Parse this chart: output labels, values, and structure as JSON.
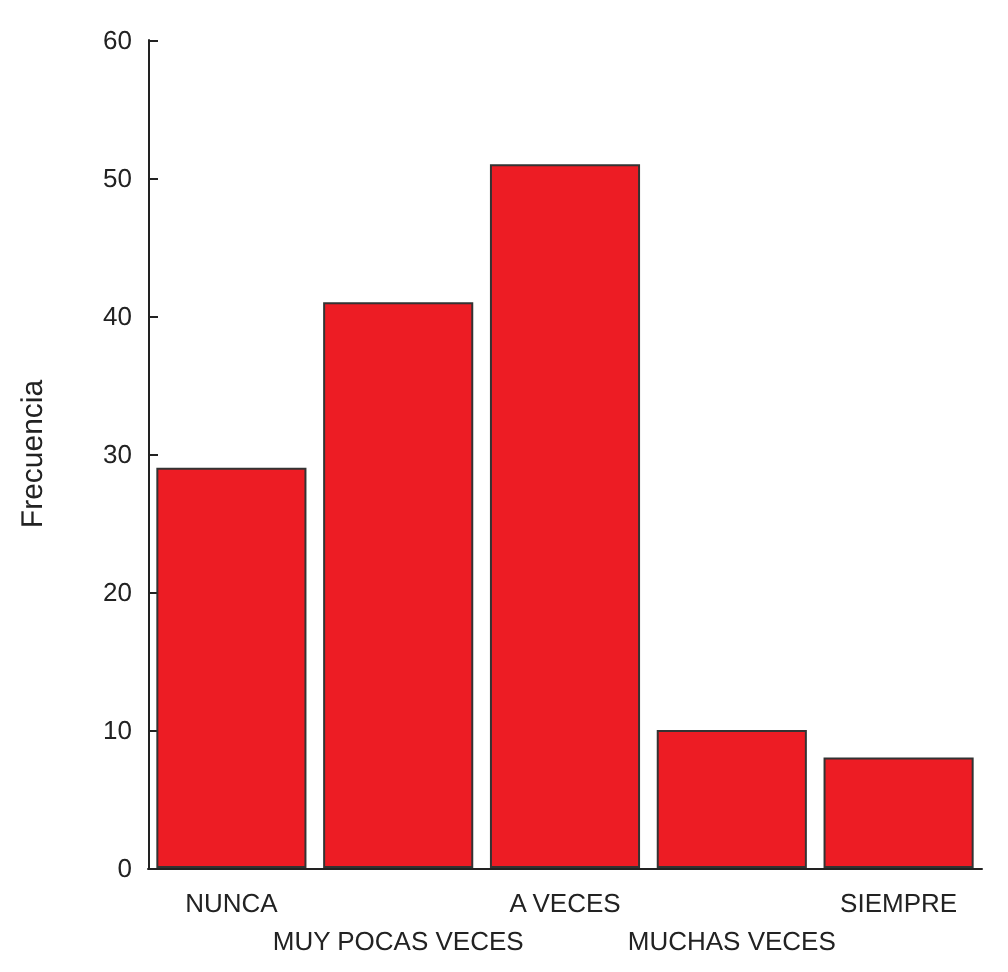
{
  "chart_data": {
    "type": "bar",
    "ylabel": "Frecuencia",
    "categories": [
      "NUNCA",
      "MUY POCAS VECES",
      "A VECES",
      "MUCHAS VECES",
      "SIEMPRE"
    ],
    "values": [
      29,
      41,
      51,
      10,
      8
    ],
    "color": "#ed1c24",
    "ylim": [
      0,
      60
    ],
    "yticks": [
      0,
      10,
      20,
      30,
      40,
      50,
      60
    ],
    "grid": false
  }
}
